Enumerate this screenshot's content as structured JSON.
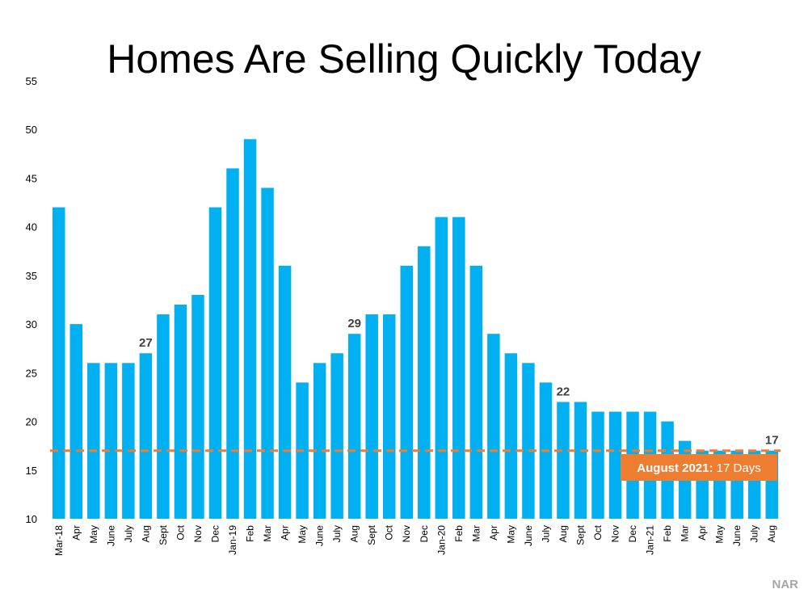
{
  "chart_data": {
    "type": "bar",
    "title": "Homes Are Selling Quickly Today",
    "categories": [
      "Mar-18",
      "Apr",
      "May",
      "June",
      "July",
      "Aug",
      "Sept",
      "Oct",
      "Nov",
      "Dec",
      "Jan-19",
      "Feb",
      "Mar",
      "Apr",
      "May",
      "June",
      "July",
      "Aug",
      "Sept",
      "Oct",
      "Nov",
      "Dec",
      "Jan-20",
      "Feb",
      "Mar",
      "Apr",
      "May",
      "June",
      "July",
      "Aug",
      "Sept",
      "Oct",
      "Nov",
      "Dec",
      "Jan-21",
      "Feb",
      "Mar",
      "Apr",
      "May",
      "June",
      "July",
      "Aug"
    ],
    "values": [
      42,
      30,
      26,
      26,
      26,
      27,
      31,
      32,
      33,
      42,
      46,
      49,
      44,
      36,
      24,
      26,
      27,
      29,
      31,
      31,
      36,
      38,
      41,
      41,
      36,
      29,
      27,
      26,
      24,
      22,
      22,
      21,
      21,
      21,
      21,
      20,
      18,
      17,
      17,
      17,
      17,
      17
    ],
    "value_labels": [
      null,
      null,
      null,
      null,
      null,
      "27",
      null,
      null,
      null,
      null,
      null,
      null,
      null,
      null,
      null,
      null,
      null,
      "29",
      null,
      null,
      null,
      null,
      null,
      null,
      null,
      null,
      null,
      null,
      null,
      "22",
      null,
      null,
      null,
      null,
      null,
      null,
      null,
      null,
      null,
      null,
      null,
      "17"
    ],
    "color": "#00b0f0",
    "ylim": [
      10,
      55
    ],
    "yticks": [
      10,
      15,
      20,
      25,
      30,
      35,
      40,
      45,
      50,
      55
    ],
    "reference_line": {
      "value": 17,
      "color": "#ed7d31"
    },
    "annotation": {
      "bold": "August 2021:",
      "text": "17 Days"
    },
    "source": "NAR"
  }
}
